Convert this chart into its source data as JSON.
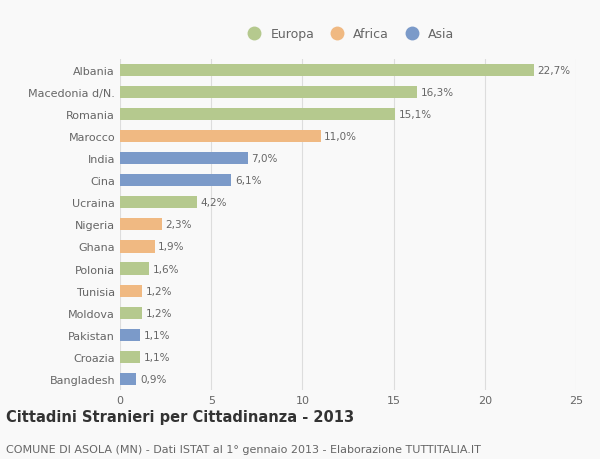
{
  "countries": [
    "Albania",
    "Macedonia d/N.",
    "Romania",
    "Marocco",
    "India",
    "Cina",
    "Ucraina",
    "Nigeria",
    "Ghana",
    "Polonia",
    "Tunisia",
    "Moldova",
    "Pakistan",
    "Croazia",
    "Bangladesh"
  ],
  "values": [
    22.7,
    16.3,
    15.1,
    11.0,
    7.0,
    6.1,
    4.2,
    2.3,
    1.9,
    1.6,
    1.2,
    1.2,
    1.1,
    1.1,
    0.9
  ],
  "labels": [
    "22,7%",
    "16,3%",
    "15,1%",
    "11,0%",
    "7,0%",
    "6,1%",
    "4,2%",
    "2,3%",
    "1,9%",
    "1,6%",
    "1,2%",
    "1,2%",
    "1,1%",
    "1,1%",
    "0,9%"
  ],
  "continents": [
    "Europa",
    "Europa",
    "Europa",
    "Africa",
    "Asia",
    "Asia",
    "Europa",
    "Africa",
    "Africa",
    "Europa",
    "Africa",
    "Europa",
    "Asia",
    "Europa",
    "Asia"
  ],
  "colors": {
    "Europa": "#b5c98e",
    "Africa": "#f0b982",
    "Asia": "#7b9ac9"
  },
  "title": "Cittadini Stranieri per Cittadinanza - 2013",
  "subtitle": "COMUNE DI ASOLA (MN) - Dati ISTAT al 1° gennaio 2013 - Elaborazione TUTTITALIA.IT",
  "xlim": [
    0,
    25
  ],
  "xticks": [
    0,
    5,
    10,
    15,
    20,
    25
  ],
  "background_color": "#f9f9f9",
  "grid_color": "#dddddd",
  "bar_height": 0.55,
  "title_fontsize": 10.5,
  "subtitle_fontsize": 8.0,
  "label_fontsize": 7.5,
  "tick_fontsize": 8.0,
  "legend_fontsize": 9.0,
  "text_color": "#666666"
}
